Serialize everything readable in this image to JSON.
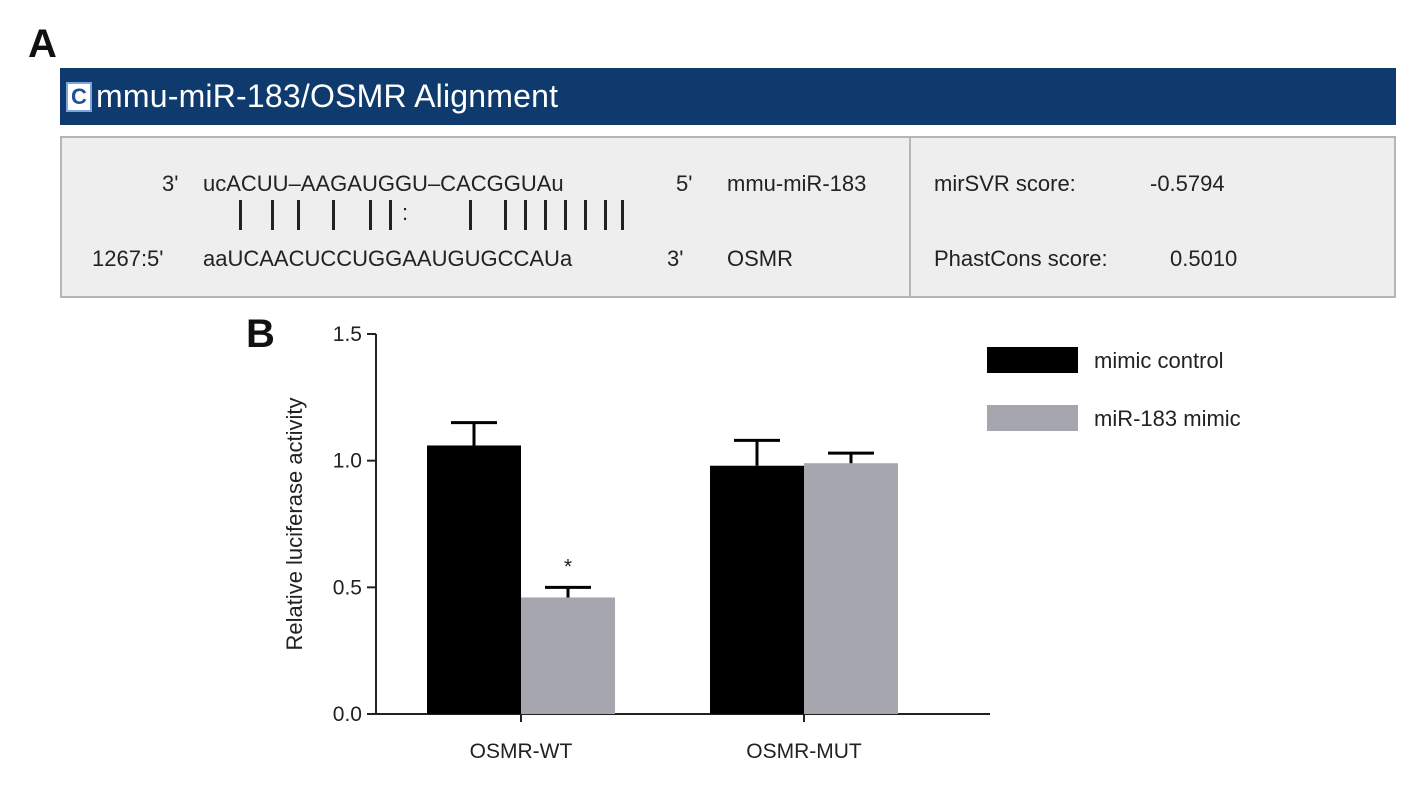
{
  "panel_a": {
    "label": "A",
    "header": {
      "icon_letter": "C",
      "title": "mmu-miR-183/OSMR Alignment"
    },
    "mirna_row": {
      "prefix": "3'",
      "sequence": "ucACUU–AAGAUGGU–CACGGUAu",
      "end": "5'",
      "name": "mmu-miR-183"
    },
    "target_row": {
      "prefix": "1267:5'",
      "sequence": "aaUCAACUCCUGGAAUGUGCCAUa",
      "end": "3'",
      "name": "OSMR"
    },
    "mirsvr": {
      "label": "mirSVR score:",
      "value": "-0.5794"
    },
    "phastcons": {
      "label": "PhastCons score:",
      "value": "0.5010"
    },
    "colon_mark": ":"
  },
  "panel_b": {
    "label": "B"
  },
  "chart_data": {
    "type": "bar",
    "categories": [
      "OSMR-WT",
      "OSMR-MUT"
    ],
    "series": [
      {
        "name": "mimic control",
        "values": [
          1.06,
          0.98
        ],
        "errors": [
          0.09,
          0.1
        ],
        "color": "#000000"
      },
      {
        "name": "miR-183 mimic",
        "values": [
          0.46,
          0.99
        ],
        "errors": [
          0.04,
          0.04
        ],
        "color": "#a6a6ae"
      }
    ],
    "annotations": [
      {
        "category": "OSMR-WT",
        "series": "miR-183 mimic",
        "text": "*"
      }
    ],
    "ylabel": "Relative luciferase activity",
    "xlabel": "",
    "ylim": [
      0,
      1.5
    ],
    "yticks": [
      "0.0",
      "0.5",
      "1.0",
      "1.5"
    ],
    "legend_position": "top-right",
    "grid": false
  }
}
